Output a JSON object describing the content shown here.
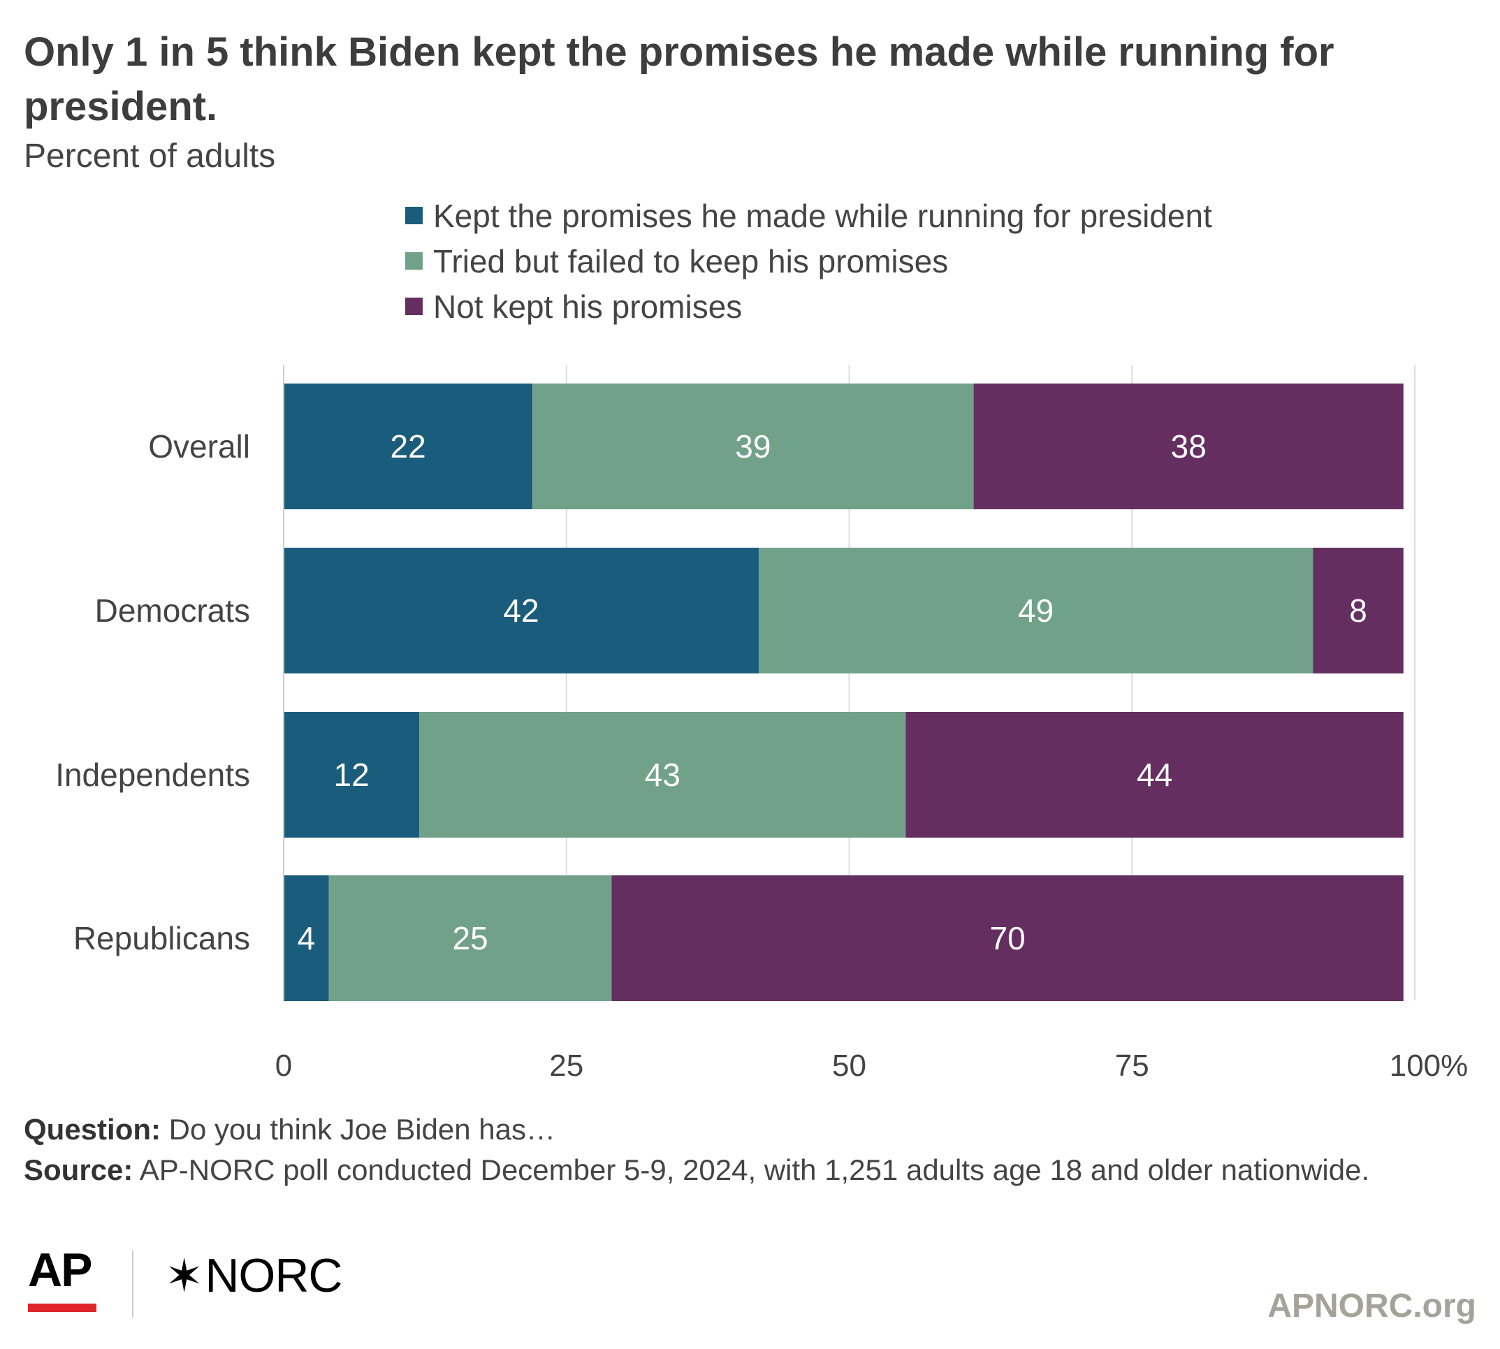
{
  "title": "Only 1 in 5 think Biden kept the promises he made while running for president.",
  "subtitle": "Percent of adults",
  "chart_data": {
    "type": "bar",
    "orientation": "horizontal",
    "stacked": true,
    "categories": [
      "Overall",
      "Democrats",
      "Independents",
      "Republicans"
    ],
    "series": [
      {
        "name": "Kept the promises he made while running for president",
        "color": "#1a5c7b",
        "values": [
          22,
          42,
          12,
          4
        ]
      },
      {
        "name": "Tried but failed to keep his promises",
        "color": "#71a289",
        "values": [
          39,
          49,
          43,
          25
        ]
      },
      {
        "name": "Not kept his promises",
        "color": "#642f60",
        "values": [
          38,
          8,
          44,
          70
        ]
      }
    ],
    "xlim": [
      0,
      100
    ],
    "xticks": [
      "0",
      "25",
      "50",
      "75",
      "100%"
    ],
    "xtick_values": [
      0,
      25,
      50,
      75,
      100
    ],
    "grid": "vertical",
    "legend": "top"
  },
  "notes": {
    "question_label": "Question:",
    "question_text": "Do you think Joe Biden has…",
    "source_label": "Source:",
    "source_text": "AP-NORC poll conducted December 5-9, 2024, with 1,251 adults age 18 and older nationwide."
  },
  "logos": {
    "ap": "AP",
    "norc": "NORC",
    "norc_mark": "✶"
  },
  "site": "APNORC.org"
}
